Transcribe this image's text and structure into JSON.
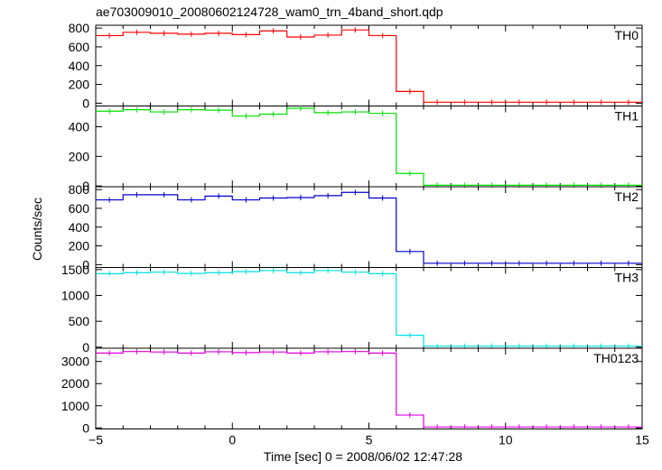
{
  "chart_data": {
    "type": "line",
    "title": "ae703009010_20080602124728_wam0_trn_4band_short.qdp",
    "xlabel": "Time [sec] 0 = 2008/06/02 12:47:28",
    "ylabel": "Counts/sec",
    "xlim": [
      -5,
      15
    ],
    "xticks": [
      -5,
      0,
      5,
      10,
      15
    ],
    "xtick_labels": [
      "−5",
      "0",
      "5",
      "10",
      "15"
    ],
    "bin_width_sec": 1,
    "bin_starts": [
      -5,
      -4,
      -3,
      -2,
      -1,
      0,
      1,
      2,
      3,
      4,
      5,
      6,
      7,
      8,
      9,
      10,
      11,
      12,
      13,
      14
    ],
    "series": [
      {
        "name": "TH0",
        "color": "#ff0000",
        "ylim": [
          -30,
          830
        ],
        "yticks": [
          0,
          200,
          400,
          600,
          800
        ],
        "values": [
          720,
          755,
          745,
          735,
          745,
          730,
          770,
          705,
          725,
          780,
          720,
          125,
          10,
          10,
          10,
          10,
          10,
          10,
          10,
          10
        ]
      },
      {
        "name": "TH1",
        "color": "#00e000",
        "ylim": [
          -5,
          540
        ],
        "yticks": [
          0,
          200,
          400
        ],
        "values": [
          505,
          515,
          500,
          515,
          512,
          472,
          485,
          525,
          495,
          500,
          490,
          85,
          5,
          5,
          5,
          5,
          5,
          5,
          5,
          5
        ]
      },
      {
        "name": "TH2",
        "color": "#0000d0",
        "ylim": [
          -30,
          830
        ],
        "yticks": [
          0,
          200,
          400,
          600,
          800
        ],
        "values": [
          690,
          745,
          745,
          690,
          730,
          690,
          710,
          715,
          735,
          770,
          710,
          140,
          15,
          15,
          15,
          15,
          15,
          15,
          15,
          15
        ]
      },
      {
        "name": "TH3",
        "color": "#00e0e0",
        "ylim": [
          -20,
          1540
        ],
        "yticks": [
          0,
          500,
          1000,
          1500
        ],
        "values": [
          1420,
          1440,
          1450,
          1425,
          1440,
          1460,
          1480,
          1440,
          1480,
          1450,
          1420,
          230,
          20,
          20,
          20,
          20,
          20,
          20,
          20,
          20
        ]
      },
      {
        "name": "TH0123",
        "color": "#e000e0",
        "ylim": [
          -50,
          3600
        ],
        "yticks": [
          0,
          1000,
          2000,
          3000
        ],
        "values": [
          3380,
          3450,
          3430,
          3380,
          3440,
          3400,
          3430,
          3380,
          3440,
          3450,
          3380,
          580,
          40,
          40,
          40,
          40,
          40,
          40,
          40,
          40
        ]
      }
    ]
  }
}
